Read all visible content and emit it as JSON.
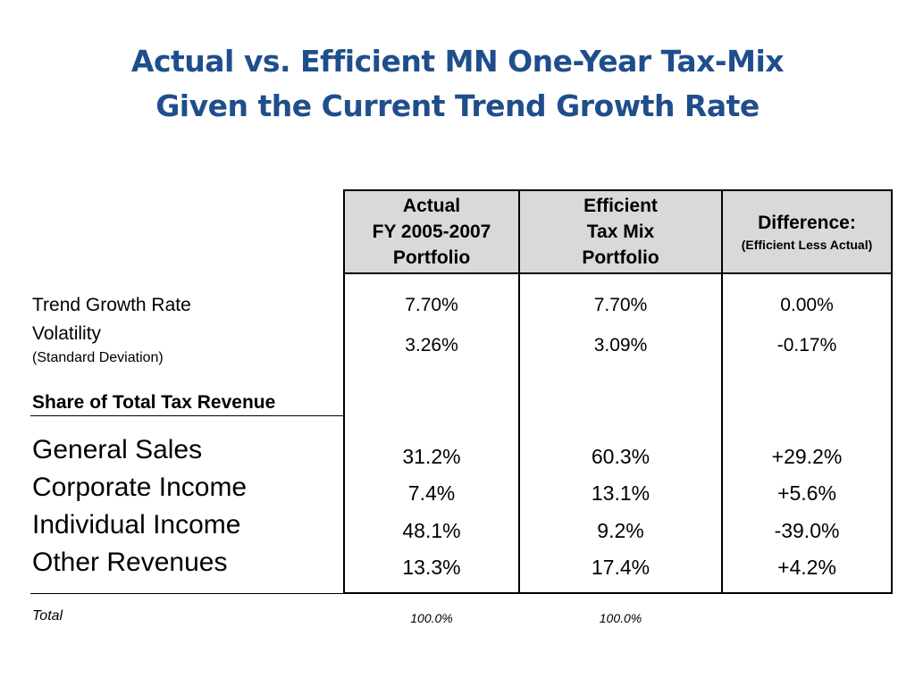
{
  "title": {
    "line1": "Actual vs. Efficient MN One-Year Tax-Mix",
    "line2": "Given the Current Trend Growth Rate"
  },
  "columns": [
    {
      "lines": [
        "Actual",
        "FY 2005-2007",
        "Portfolio"
      ]
    },
    {
      "lines": [
        "Efficient",
        "Tax Mix",
        "Portfolio"
      ]
    },
    {
      "label": "Difference:",
      "sublabel": "(Efficient Less Actual)"
    }
  ],
  "stats": {
    "trend_growth_rate": {
      "label": "Trend Growth Rate",
      "values": [
        "7.70%",
        "7.70%",
        "0.00%"
      ]
    },
    "volatility": {
      "label": "Volatility",
      "sublabel": "(Standard Deviation)",
      "values": [
        "3.26%",
        "3.09%",
        "-0.17%"
      ]
    }
  },
  "section_heading": "Share of Total Tax Revenue",
  "revenue_rows": [
    {
      "label": "General Sales",
      "values": [
        "31.2%",
        "60.3%",
        "+29.2%"
      ]
    },
    {
      "label": "Corporate Income",
      "values": [
        "7.4%",
        "13.1%",
        "+5.6%"
      ]
    },
    {
      "label": "Individual Income",
      "values": [
        "48.1%",
        "9.2%",
        "-39.0%"
      ]
    },
    {
      "label": "Other Revenues",
      "values": [
        "13.3%",
        "17.4%",
        "+4.2%"
      ]
    }
  ],
  "total": {
    "label": "Total",
    "values": [
      "100.0%",
      "100.0%"
    ]
  }
}
